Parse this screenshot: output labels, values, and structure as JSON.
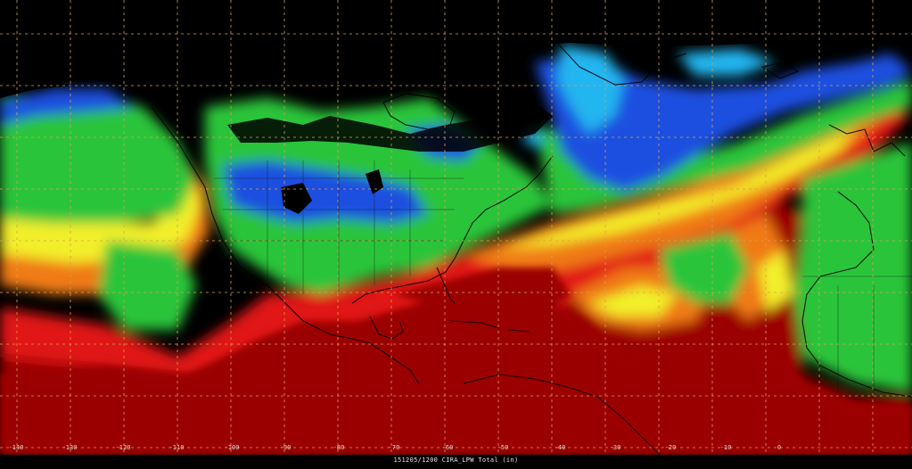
{
  "map": {
    "caption": "151205/1200 CIRA_LPW Total  (in)",
    "longitude_labels": [
      "-140",
      "-130",
      "-120",
      "-110",
      "-100",
      "-90",
      "-80",
      "-70",
      "-60",
      "-50",
      "-40",
      "-30",
      "-20",
      "-10",
      "0"
    ],
    "graticule_color": "#d9a24a",
    "colors": {
      "very_dry": "#8a1aa8",
      "dry": "#1f4fe0",
      "low": "#24b6f0",
      "moderate": "#29c43b",
      "elevated": "#f2ef2c",
      "high": "#f07a12",
      "very_high": "#e11414",
      "extreme": "#9b0505"
    }
  }
}
